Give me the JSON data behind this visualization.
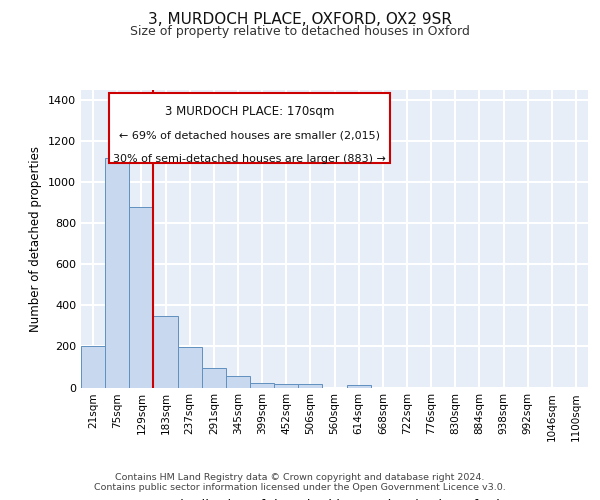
{
  "title": "3, MURDOCH PLACE, OXFORD, OX2 9SR",
  "subtitle": "Size of property relative to detached houses in Oxford",
  "xlabel": "Distribution of detached houses by size in Oxford",
  "ylabel": "Number of detached properties",
  "bar_labels": [
    "21sqm",
    "75sqm",
    "129sqm",
    "183sqm",
    "237sqm",
    "291sqm",
    "345sqm",
    "399sqm",
    "452sqm",
    "506sqm",
    "560sqm",
    "614sqm",
    "668sqm",
    "722sqm",
    "776sqm",
    "830sqm",
    "884sqm",
    "938sqm",
    "992sqm",
    "1046sqm",
    "1100sqm"
  ],
  "bar_values": [
    200,
    1120,
    880,
    350,
    195,
    95,
    55,
    20,
    15,
    15,
    0,
    10,
    0,
    0,
    0,
    0,
    0,
    0,
    0,
    0,
    0
  ],
  "bar_color": "#c8d8ee",
  "bar_edgecolor": "#6090c0",
  "red_line_x": 2.5,
  "annotation_line1": "3 MURDOCH PLACE: 170sqm",
  "annotation_line2": "← 69% of detached houses are smaller (2,015)",
  "annotation_line3": "30% of semi-detached houses are larger (883) →",
  "annotation_box_facecolor": "#ffffff",
  "annotation_box_edgecolor": "#cc0000",
  "ylim": [
    0,
    1450
  ],
  "yticks": [
    0,
    200,
    400,
    600,
    800,
    1000,
    1200,
    1400
  ],
  "plot_bg_color": "#e8eef8",
  "grid_color": "#ffffff",
  "footer_line1": "Contains HM Land Registry data © Crown copyright and database right 2024.",
  "footer_line2": "Contains public sector information licensed under the Open Government Licence v3.0."
}
